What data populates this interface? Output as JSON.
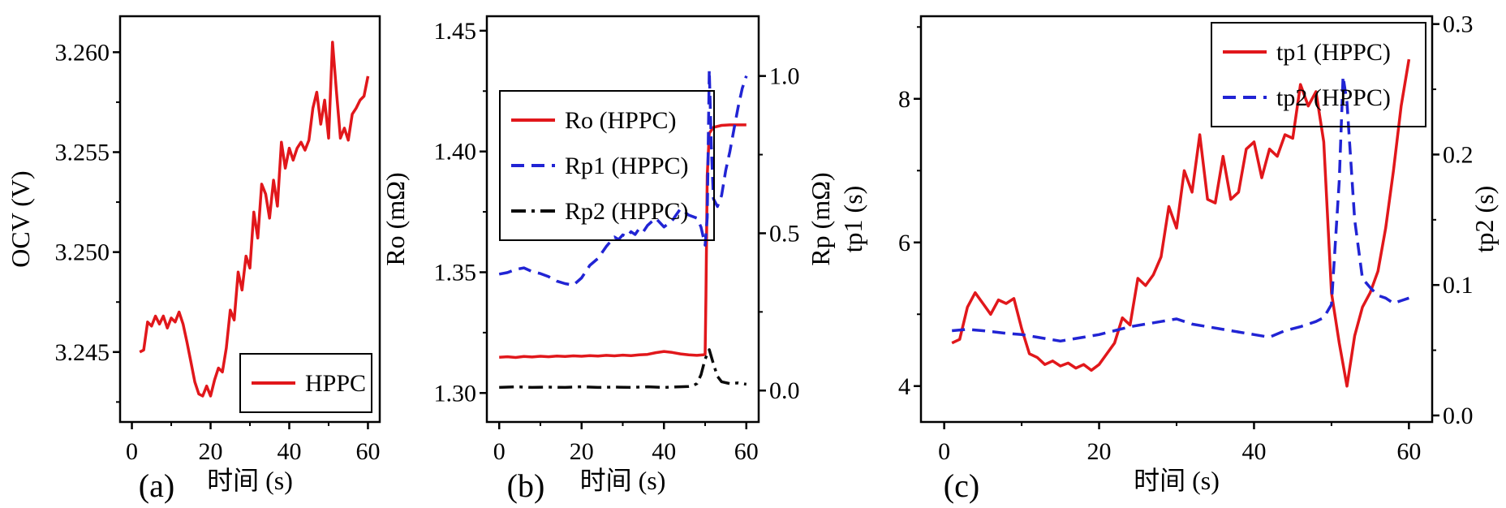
{
  "figure": {
    "background": "#ffffff",
    "axis_color": "#000000"
  },
  "chart_data": [
    {
      "type": "line",
      "panel_label": "(a)",
      "xlabel": "时间 (s)",
      "x_axis": {
        "lim": [
          -3,
          63
        ],
        "major_ticks": [
          0,
          20,
          40,
          60
        ],
        "minor_ticks": [
          10,
          30,
          50
        ],
        "decimals": 0
      },
      "left_axis": {
        "label": "OCV (V)",
        "lim": [
          3.2415,
          3.2618
        ],
        "major_ticks": [
          3.245,
          3.25,
          3.255,
          3.26
        ],
        "minor_ticks": [
          3.2425,
          3.2475,
          3.2525,
          3.2575
        ],
        "decimals": 3
      },
      "right_axis": null,
      "legend": {
        "position": "lower-right",
        "entries": [
          {
            "series": 0,
            "label": "HPPC"
          }
        ]
      },
      "series": [
        {
          "name": "HPPC",
          "axis": "left",
          "color": "#e1171b",
          "dash": "solid",
          "width": 3.5,
          "x": [
            2,
            3,
            4,
            5,
            6,
            7,
            8,
            9,
            10,
            11,
            12,
            13,
            14,
            15,
            16,
            17,
            18,
            19,
            20,
            21,
            22,
            23,
            24,
            25,
            26,
            27,
            28,
            29,
            30,
            31,
            32,
            33,
            34,
            35,
            36,
            37,
            38,
            39,
            40,
            41,
            42,
            43,
            44,
            45,
            46,
            47,
            48,
            49,
            50,
            51,
            52,
            53,
            54,
            55,
            56,
            57,
            58,
            59,
            60
          ],
          "y": [
            3.245,
            3.2451,
            3.2465,
            3.2463,
            3.2468,
            3.2464,
            3.2468,
            3.2462,
            3.2467,
            3.2465,
            3.247,
            3.2464,
            3.2455,
            3.2445,
            3.2435,
            3.2429,
            3.2428,
            3.2433,
            3.2428,
            3.2436,
            3.2442,
            3.244,
            3.2452,
            3.2471,
            3.2466,
            3.249,
            3.2481,
            3.2498,
            3.2492,
            3.252,
            3.2507,
            3.2534,
            3.2529,
            3.2517,
            3.2536,
            3.2523,
            3.2555,
            3.2542,
            3.2552,
            3.2546,
            3.2552,
            3.2555,
            3.2551,
            3.2556,
            3.2572,
            3.258,
            3.2564,
            3.2576,
            3.2557,
            3.2605,
            3.258,
            3.2557,
            3.2562,
            3.2556,
            3.2569,
            3.2572,
            3.2576,
            3.2578,
            3.2588
          ]
        }
      ]
    },
    {
      "type": "line",
      "panel_label": "(b)",
      "xlabel": "时间 (s)",
      "x_axis": {
        "lim": [
          -3,
          63
        ],
        "major_ticks": [
          0,
          20,
          40,
          60
        ],
        "minor_ticks": [
          10,
          30,
          50
        ],
        "decimals": 0
      },
      "left_axis": {
        "label": "Ro (mΩ)",
        "lim": [
          1.288,
          1.456
        ],
        "major_ticks": [
          1.3,
          1.35,
          1.4,
          1.45
        ],
        "minor_ticks": [
          1.325,
          1.375,
          1.425
        ],
        "decimals": 2
      },
      "right_axis": {
        "label": "Rp (mΩ)",
        "lim": [
          -0.1,
          1.19
        ],
        "major_ticks": [
          0,
          0.5,
          1
        ],
        "minor_ticks": [
          0.25,
          0.75
        ],
        "decimals": 1
      },
      "legend": {
        "position": "upper-left",
        "entries": [
          {
            "series": 0,
            "label": "Ro (HPPC)"
          },
          {
            "series": 1,
            "label": "Rp1 (HPPC)"
          },
          {
            "series": 2,
            "label": "Rp2 (HPPC)"
          }
        ]
      },
      "series": [
        {
          "name": "Ro",
          "axis": "left",
          "color": "#e1171b",
          "dash": "solid",
          "width": 3.5,
          "x": [
            0,
            2,
            4,
            6,
            8,
            10,
            12,
            14,
            16,
            18,
            20,
            22,
            24,
            26,
            28,
            30,
            32,
            34,
            36,
            38,
            40,
            42,
            44,
            46,
            48,
            49.5,
            50,
            50.2,
            50.5,
            51,
            52,
            54,
            56,
            58,
            60
          ],
          "y": [
            1.3148,
            1.315,
            1.3147,
            1.3151,
            1.3149,
            1.3152,
            1.315,
            1.3153,
            1.3151,
            1.3154,
            1.3152,
            1.3155,
            1.3153,
            1.3156,
            1.3154,
            1.3157,
            1.3155,
            1.3158,
            1.316,
            1.3167,
            1.3172,
            1.3168,
            1.3162,
            1.3158,
            1.3156,
            1.3158,
            1.316,
            1.34,
            1.39,
            1.4075,
            1.41,
            1.4108,
            1.411,
            1.411,
            1.411
          ]
        },
        {
          "name": "Rp1",
          "axis": "right",
          "color": "#2124d4",
          "dash": "dashed",
          "width": 3.5,
          "x": [
            0,
            2,
            4,
            6,
            8,
            10,
            12,
            14,
            16,
            18,
            20,
            22,
            24,
            26,
            28,
            29,
            30,
            31,
            32,
            33,
            34,
            35,
            36,
            38,
            40,
            42,
            44,
            46,
            48,
            49,
            50,
            50.5,
            51,
            51.5,
            52,
            53,
            54,
            55,
            56,
            57,
            58,
            59,
            60
          ],
          "y": [
            0.37,
            0.375,
            0.385,
            0.39,
            0.378,
            0.372,
            0.362,
            0.348,
            0.34,
            0.335,
            0.358,
            0.398,
            0.42,
            0.458,
            0.488,
            0.48,
            0.495,
            0.488,
            0.505,
            0.496,
            0.515,
            0.505,
            0.525,
            0.548,
            0.52,
            0.54,
            0.578,
            0.558,
            0.548,
            0.52,
            0.462,
            0.55,
            1.02,
            0.78,
            0.61,
            0.585,
            0.62,
            0.7,
            0.76,
            0.83,
            0.9,
            0.96,
            1.0
          ]
        },
        {
          "name": "Rp2",
          "axis": "right",
          "color": "#0a0a0a",
          "dash": "dashdot",
          "width": 3.5,
          "x": [
            0,
            4,
            8,
            12,
            16,
            20,
            24,
            28,
            32,
            36,
            40,
            44,
            46,
            47,
            48,
            49,
            50,
            51,
            52,
            53,
            54,
            56,
            58,
            60
          ],
          "y": [
            0.01,
            0.012,
            0.01,
            0.011,
            0.01,
            0.012,
            0.01,
            0.011,
            0.01,
            0.012,
            0.01,
            0.012,
            0.013,
            0.015,
            0.022,
            0.05,
            0.1,
            0.13,
            0.085,
            0.045,
            0.028,
            0.022,
            0.024,
            0.02
          ]
        }
      ]
    },
    {
      "type": "line",
      "panel_label": "(c)",
      "xlabel": "时间 (s)",
      "x_axis": {
        "lim": [
          -3,
          63
        ],
        "major_ticks": [
          0,
          20,
          40,
          60
        ],
        "minor_ticks": [
          10,
          30,
          50
        ],
        "decimals": 0
      },
      "left_axis": {
        "label": "tp1 (s)",
        "lim": [
          3.5,
          9.15
        ],
        "major_ticks": [
          4,
          6,
          8
        ],
        "minor_ticks": [
          5,
          7,
          9
        ],
        "decimals": 0
      },
      "right_axis": {
        "label": "tp2 (s)",
        "lim": [
          -0.005,
          0.306
        ],
        "major_ticks": [
          0,
          0.1,
          0.2,
          0.3
        ],
        "minor_ticks": [
          0.05,
          0.15,
          0.25
        ],
        "decimals": 1
      },
      "legend": {
        "position": "upper-right",
        "entries": [
          {
            "series": 0,
            "label": "tp1 (HPPC)"
          },
          {
            "series": 1,
            "label": "tp2 (HPPC)"
          }
        ]
      },
      "series": [
        {
          "name": "tp1",
          "axis": "left",
          "color": "#e1171b",
          "dash": "solid",
          "width": 3.5,
          "x": [
            1,
            2,
            3,
            4,
            5,
            6,
            7,
            8,
            9,
            10,
            11,
            12,
            13,
            14,
            15,
            16,
            17,
            18,
            19,
            20,
            21,
            22,
            23,
            24,
            25,
            26,
            27,
            28,
            29,
            30,
            31,
            32,
            33,
            34,
            35,
            36,
            37,
            38,
            39,
            40,
            41,
            42,
            43,
            44,
            45,
            46,
            47,
            48,
            49,
            50,
            51,
            52,
            53,
            54,
            55,
            56,
            57,
            58,
            59,
            60
          ],
          "y": [
            4.6,
            4.65,
            5.1,
            5.3,
            5.15,
            5.0,
            5.2,
            5.15,
            5.22,
            4.8,
            4.45,
            4.4,
            4.3,
            4.35,
            4.28,
            4.32,
            4.25,
            4.3,
            4.22,
            4.3,
            4.45,
            4.6,
            4.95,
            4.85,
            5.5,
            5.4,
            5.55,
            5.8,
            6.5,
            6.2,
            7.0,
            6.7,
            7.5,
            6.6,
            6.55,
            7.2,
            6.6,
            6.7,
            7.3,
            7.4,
            6.9,
            7.3,
            7.2,
            7.5,
            7.45,
            8.2,
            7.9,
            8.1,
            7.4,
            5.3,
            4.6,
            4.0,
            4.7,
            5.1,
            5.3,
            5.6,
            6.2,
            7.0,
            7.9,
            8.55
          ]
        },
        {
          "name": "tp2",
          "axis": "right",
          "color": "#2124d4",
          "dash": "dashed",
          "width": 3.5,
          "x": [
            1,
            3,
            5,
            8,
            10,
            12,
            15,
            18,
            20,
            22,
            24,
            26,
            28,
            30,
            32,
            34,
            36,
            38,
            40,
            42,
            44,
            46,
            48,
            49,
            50,
            51,
            51.5,
            52,
            53,
            54,
            55,
            56,
            57,
            58,
            59,
            60
          ],
          "y": [
            0.065,
            0.066,
            0.065,
            0.063,
            0.062,
            0.06,
            0.057,
            0.06,
            0.062,
            0.065,
            0.068,
            0.07,
            0.072,
            0.074,
            0.07,
            0.068,
            0.066,
            0.064,
            0.062,
            0.06,
            0.065,
            0.068,
            0.072,
            0.075,
            0.085,
            0.18,
            0.26,
            0.24,
            0.15,
            0.105,
            0.098,
            0.092,
            0.09,
            0.086,
            0.088,
            0.09
          ]
        }
      ]
    }
  ]
}
